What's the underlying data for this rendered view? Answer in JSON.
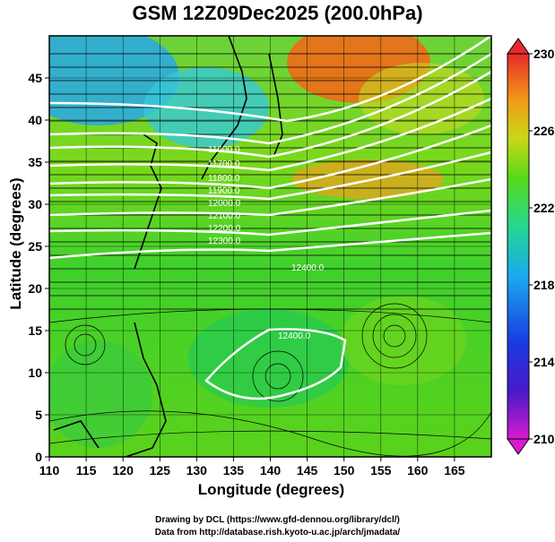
{
  "title": "GSM 12Z09Dec2025 (200.0hPa)",
  "axes": {
    "xlabel": "Longitude (degrees)",
    "ylabel": "Latitude  (degrees)",
    "xticks": [
      "110",
      "115",
      "120",
      "125",
      "130",
      "135",
      "140",
      "145",
      "150",
      "155",
      "160",
      "165"
    ],
    "yticks": [
      "0",
      "5",
      "10",
      "15",
      "20",
      "25",
      "30",
      "35",
      "40",
      "45"
    ]
  },
  "colorbar": {
    "ticks": [
      "210",
      "214",
      "218",
      "222",
      "226",
      "230"
    ],
    "colors": [
      "#d81bd0",
      "#1a1ab8",
      "#1a9af0",
      "#22d8b0",
      "#5cd81a",
      "#c0d81a",
      "#f0a01a",
      "#f04418",
      "#e02828"
    ]
  },
  "contour_labels": [
    "12400.0",
    "11600.0",
    "11700.0",
    "11800.0",
    "11900.0",
    "12000.0",
    "12100.0",
    "12200.0",
    "12300.0",
    "12400.0"
  ],
  "credits": {
    "line1": "Drawing by DCL (https://www.gfd-dennou.org/library/dcl/)",
    "line2": "Data from http://database.rish.kyoto-u.ac.jp/arch/jmadata/"
  },
  "chart_data": {
    "type": "heatmap",
    "title": "GSM 12Z09Dec2025 (200.0hPa)",
    "xlabel": "Longitude (degrees)",
    "ylabel": "Latitude  (degrees)",
    "xlim": [
      110,
      170
    ],
    "ylim": [
      0,
      50
    ],
    "color_range": [
      210,
      230
    ],
    "color_ticks": [
      210,
      214,
      218,
      222,
      226,
      230
    ],
    "contour_levels": [
      11600,
      11700,
      11800,
      11900,
      12000,
      12100,
      12200,
      12300,
      12400
    ],
    "overlay": "streamlines"
  }
}
